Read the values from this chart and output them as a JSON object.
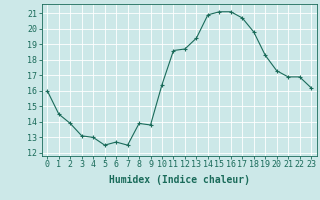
{
  "x": [
    0,
    1,
    2,
    3,
    4,
    5,
    6,
    7,
    8,
    9,
    10,
    11,
    12,
    13,
    14,
    15,
    16,
    17,
    18,
    19,
    20,
    21,
    22,
    23
  ],
  "y": [
    16.0,
    14.5,
    13.9,
    13.1,
    13.0,
    12.5,
    12.7,
    12.5,
    13.9,
    13.8,
    16.4,
    18.6,
    18.7,
    19.4,
    20.9,
    21.1,
    21.1,
    20.7,
    19.8,
    18.3,
    17.3,
    16.9,
    16.9,
    16.2
  ],
  "line_color": "#1a6b5a",
  "marker": "+",
  "marker_size": 3,
  "bg_color": "#cce8e8",
  "grid_color": "#ffffff",
  "xlabel": "Humidex (Indice chaleur)",
  "ylabel_ticks": [
    12,
    13,
    14,
    15,
    16,
    17,
    18,
    19,
    20,
    21
  ],
  "xlim": [
    -0.5,
    23.5
  ],
  "ylim": [
    11.8,
    21.6
  ],
  "axis_color": "#1a6b5a",
  "tick_label_color": "#1a6b5a",
  "xlabel_color": "#1a6b5a",
  "label_fontsize": 7,
  "tick_fontsize": 6
}
